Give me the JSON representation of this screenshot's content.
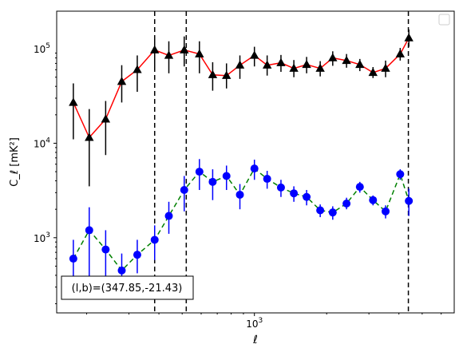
{
  "chart_data": {
    "type": "line",
    "xlabel": "ℓ",
    "ylabel": "C_ℓ [mK²]",
    "xscale": "log",
    "yscale": "log",
    "xlim": [
      150,
      6800
    ],
    "ylim": [
      160,
      250000
    ],
    "x_tick_labels": [
      {
        "value": 1000,
        "base": "10",
        "exp": "3"
      }
    ],
    "y_tick_labels": [
      {
        "value": 1000,
        "base": "10",
        "exp": "3"
      },
      {
        "value": 10000,
        "base": "10",
        "exp": "4"
      },
      {
        "value": 100000,
        "base": "10",
        "exp": "5"
      }
    ],
    "vlines": [
      384,
      520,
      4380
    ],
    "annotation": "(l,b)=(347.85,-21.43)",
    "legend": {
      "placement": "top-right",
      "entries": []
    },
    "grid": false,
    "series": [
      {
        "line_color": "#ff0000",
        "marker": "triangle",
        "marker_color": "#000000",
        "linestyle": "solid",
        "points": [
          {
            "x": 176,
            "y": 27000,
            "lo": 11000,
            "hi": 43000
          },
          {
            "x": 205,
            "y": 11500,
            "lo": 3500,
            "hi": 23000
          },
          {
            "x": 240,
            "y": 18000,
            "lo": 7500,
            "hi": 28000
          },
          {
            "x": 280,
            "y": 45000,
            "lo": 27000,
            "hi": 67000
          },
          {
            "x": 325,
            "y": 60000,
            "lo": 35000,
            "hi": 85000
          },
          {
            "x": 384,
            "y": 97000,
            "lo": 60000,
            "hi": 135000
          },
          {
            "x": 440,
            "y": 85000,
            "lo": 55000,
            "hi": 120000
          },
          {
            "x": 510,
            "y": 97000,
            "lo": 65000,
            "hi": 135000
          },
          {
            "x": 590,
            "y": 88000,
            "lo": 55000,
            "hi": 120000
          },
          {
            "x": 670,
            "y": 53000,
            "lo": 36000,
            "hi": 72000
          },
          {
            "x": 765,
            "y": 52000,
            "lo": 38000,
            "hi": 70000
          },
          {
            "x": 870,
            "y": 67000,
            "lo": 48000,
            "hi": 85000
          },
          {
            "x": 1000,
            "y": 85000,
            "lo": 65000,
            "hi": 105000
          },
          {
            "x": 1130,
            "y": 67000,
            "lo": 52000,
            "hi": 85000
          },
          {
            "x": 1290,
            "y": 71000,
            "lo": 57000,
            "hi": 86000
          },
          {
            "x": 1460,
            "y": 62000,
            "lo": 50000,
            "hi": 76000
          },
          {
            "x": 1650,
            "y": 68000,
            "lo": 55000,
            "hi": 82000
          },
          {
            "x": 1880,
            "y": 62000,
            "lo": 51000,
            "hi": 74000
          },
          {
            "x": 2120,
            "y": 80000,
            "lo": 66000,
            "hi": 94000
          },
          {
            "x": 2420,
            "y": 75000,
            "lo": 63000,
            "hi": 88000
          },
          {
            "x": 2750,
            "y": 68000,
            "lo": 58000,
            "hi": 78000
          },
          {
            "x": 3120,
            "y": 56000,
            "lo": 49000,
            "hi": 64000
          },
          {
            "x": 3520,
            "y": 62000,
            "lo": 50000,
            "hi": 75000
          },
          {
            "x": 4050,
            "y": 88000,
            "lo": 75000,
            "hi": 102000
          },
          {
            "x": 4400,
            "y": 130000,
            "lo": 105000,
            "hi": 160000
          }
        ]
      },
      {
        "line_color": "#008000",
        "marker": "circle",
        "marker_color": "#0000ff",
        "linestyle": "dashed",
        "points": [
          {
            "x": 176,
            "y": 600,
            "lo": 350,
            "hi": 950
          },
          {
            "x": 205,
            "y": 1200,
            "lo": 330,
            "hi": 2100
          },
          {
            "x": 240,
            "y": 750,
            "lo": 330,
            "hi": 1200
          },
          {
            "x": 280,
            "y": 450,
            "lo": 250,
            "hi": 680
          },
          {
            "x": 325,
            "y": 660,
            "lo": 420,
            "hi": 950
          },
          {
            "x": 384,
            "y": 950,
            "lo": 580,
            "hi": 1350
          },
          {
            "x": 440,
            "y": 1700,
            "lo": 1100,
            "hi": 2400
          },
          {
            "x": 510,
            "y": 3200,
            "lo": 1900,
            "hi": 4500
          },
          {
            "x": 590,
            "y": 5000,
            "lo": 3200,
            "hi": 6800
          },
          {
            "x": 670,
            "y": 3900,
            "lo": 2500,
            "hi": 5300
          },
          {
            "x": 765,
            "y": 4500,
            "lo": 3200,
            "hi": 5800
          },
          {
            "x": 870,
            "y": 2850,
            "lo": 2000,
            "hi": 3700
          },
          {
            "x": 1000,
            "y": 5400,
            "lo": 4100,
            "hi": 6700
          },
          {
            "x": 1130,
            "y": 4200,
            "lo": 3300,
            "hi": 5100
          },
          {
            "x": 1290,
            "y": 3400,
            "lo": 2700,
            "hi": 4100
          },
          {
            "x": 1460,
            "y": 2950,
            "lo": 2400,
            "hi": 3500
          },
          {
            "x": 1650,
            "y": 2700,
            "lo": 2200,
            "hi": 3200
          },
          {
            "x": 1880,
            "y": 1950,
            "lo": 1650,
            "hi": 2250
          },
          {
            "x": 2120,
            "y": 1850,
            "lo": 1550,
            "hi": 2150
          },
          {
            "x": 2420,
            "y": 2300,
            "lo": 2000,
            "hi": 2650
          },
          {
            "x": 2750,
            "y": 3450,
            "lo": 3000,
            "hi": 3900
          },
          {
            "x": 3120,
            "y": 2500,
            "lo": 2200,
            "hi": 2800
          },
          {
            "x": 3520,
            "y": 1900,
            "lo": 1600,
            "hi": 2200
          },
          {
            "x": 4050,
            "y": 4700,
            "lo": 4100,
            "hi": 5300
          },
          {
            "x": 4400,
            "y": 2450,
            "lo": 1700,
            "hi": 3300
          }
        ]
      }
    ]
  }
}
